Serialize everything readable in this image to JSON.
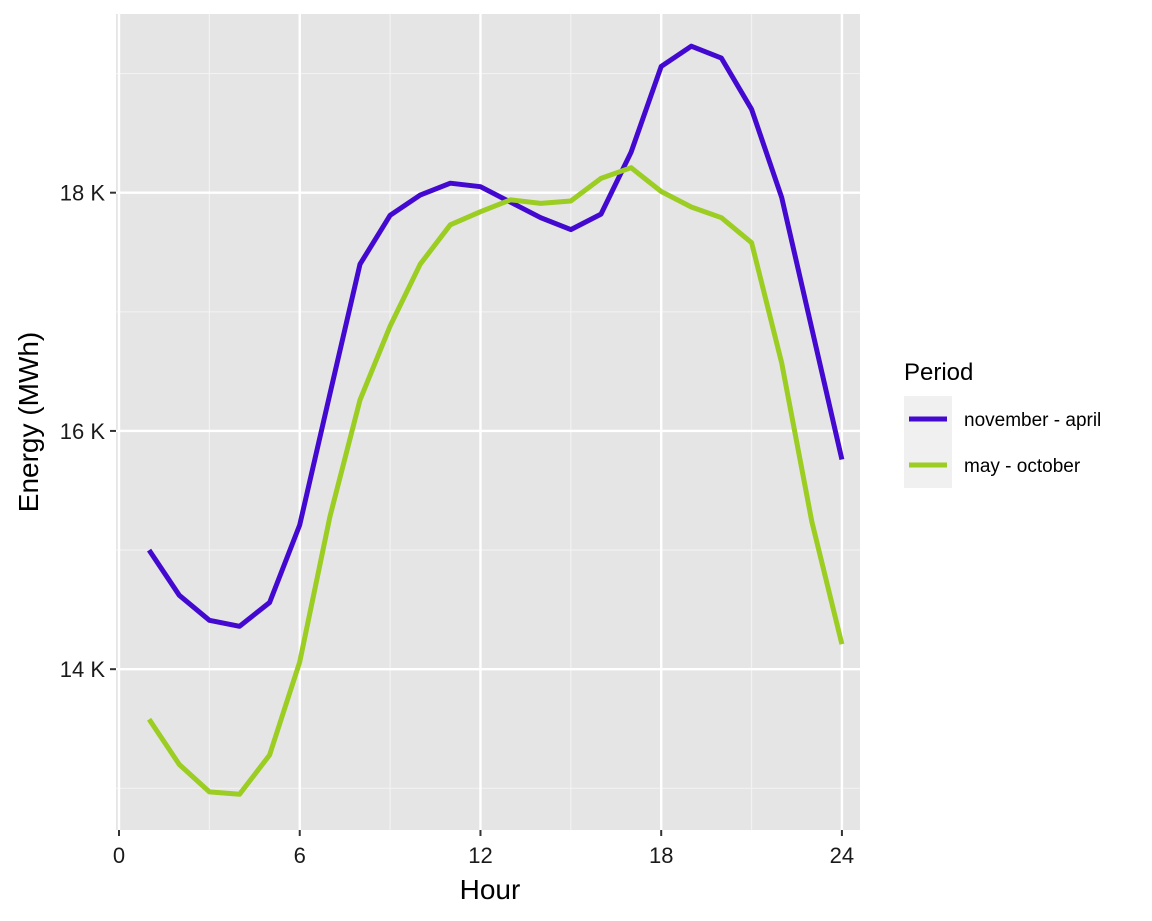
{
  "chart_data": {
    "type": "line",
    "xlabel": "Hour",
    "ylabel": "Energy (MWh)",
    "xlim": [
      -0.1,
      24.6
    ],
    "ylim": [
      12650,
      19500
    ],
    "x_ticks": [
      0,
      6,
      12,
      18,
      24
    ],
    "x_tick_labels": [
      "0",
      "6",
      "12",
      "18",
      "24"
    ],
    "y_ticks": [
      14000,
      16000,
      18000
    ],
    "y_tick_labels": [
      "14 K",
      "16 K",
      "18 K"
    ],
    "y_minor": [
      13000,
      15000,
      17000,
      19000
    ],
    "x_minor": [
      3,
      9,
      15,
      21
    ],
    "grid": true,
    "legend": {
      "title": "Period",
      "placement": "right"
    },
    "x": [
      1,
      2,
      3,
      4,
      5,
      6,
      7,
      8,
      9,
      10,
      11,
      12,
      13,
      14,
      15,
      16,
      17,
      18,
      19,
      20,
      21,
      22,
      23,
      24
    ],
    "series": [
      {
        "name": "november - april",
        "color": "#4309d0",
        "values": [
          15000,
          14620,
          14410,
          14360,
          14560,
          15210,
          16310,
          17400,
          17810,
          17980,
          18080,
          18050,
          17920,
          17790,
          17690,
          17820,
          18340,
          19060,
          19230,
          19130,
          18700,
          17960,
          16860,
          15760
        ]
      },
      {
        "name": "may - october",
        "color": "#9bcd23",
        "values": [
          13580,
          13200,
          12970,
          12950,
          13280,
          14060,
          15280,
          16260,
          16880,
          17400,
          17730,
          17840,
          17940,
          17910,
          17930,
          18120,
          18210,
          18010,
          17880,
          17790,
          17580,
          16570,
          15240,
          14210
        ]
      }
    ]
  }
}
